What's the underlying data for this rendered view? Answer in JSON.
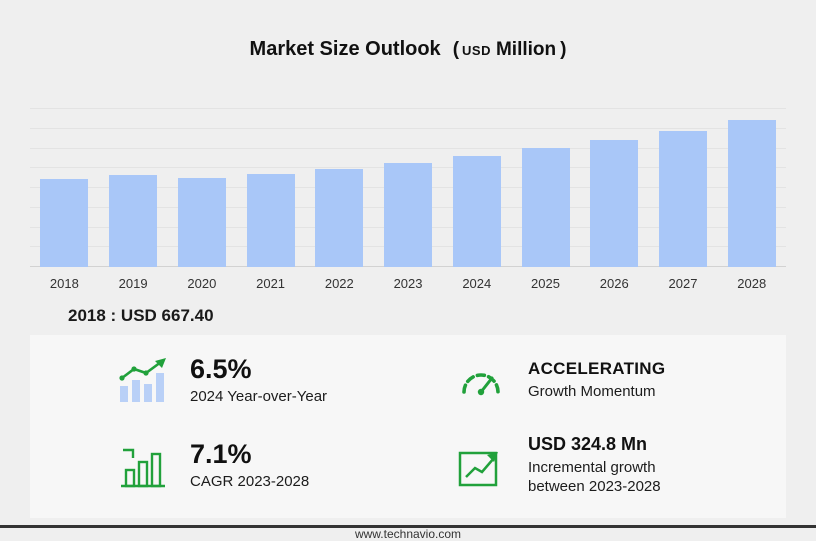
{
  "header": {
    "title": "Market Size Outlook",
    "paren_open": "(",
    "currency": "USD",
    "unit": "Million",
    "paren_close": ")"
  },
  "chart_data": {
    "type": "bar",
    "title": "Market Size Outlook (USD Million)",
    "categories": [
      "2018",
      "2019",
      "2020",
      "2021",
      "2022",
      "2023",
      "2024",
      "2025",
      "2026",
      "2027",
      "2028"
    ],
    "values": [
      667.4,
      702,
      678,
      705,
      745,
      792.2,
      843.7,
      905,
      963,
      1033,
      1117
    ],
    "ylabel": "",
    "xlabel": "",
    "ylim": [
      0,
      1200
    ],
    "grid_step": 150,
    "grid": true,
    "legend": false,
    "bar_color": "#a9c7f8"
  },
  "note": {
    "text": "2018 : USD  667.40"
  },
  "stats": {
    "yoy": {
      "value": "6.5%",
      "label": "2024 Year-over-Year",
      "icon": "bars-with-growth-line-icon"
    },
    "momentum": {
      "value": "ACCELERATING",
      "label": "Growth Momentum",
      "icon": "speedometer-icon"
    },
    "cagr": {
      "value": "7.1%",
      "label": "CAGR 2023-2028",
      "icon": "outlined-bars-icon"
    },
    "incremental": {
      "value": "USD 324.8 Mn",
      "label_line1": "Incremental growth",
      "label_line2": "between 2023-2028",
      "icon": "box-growth-arrow-icon"
    }
  },
  "footer": {
    "url": "www.technavio.com"
  },
  "colors": {
    "accent_green": "#21a13b",
    "bar_blue": "#a9c7f8",
    "background": "#efefef",
    "panel": "#f7f7f7"
  }
}
